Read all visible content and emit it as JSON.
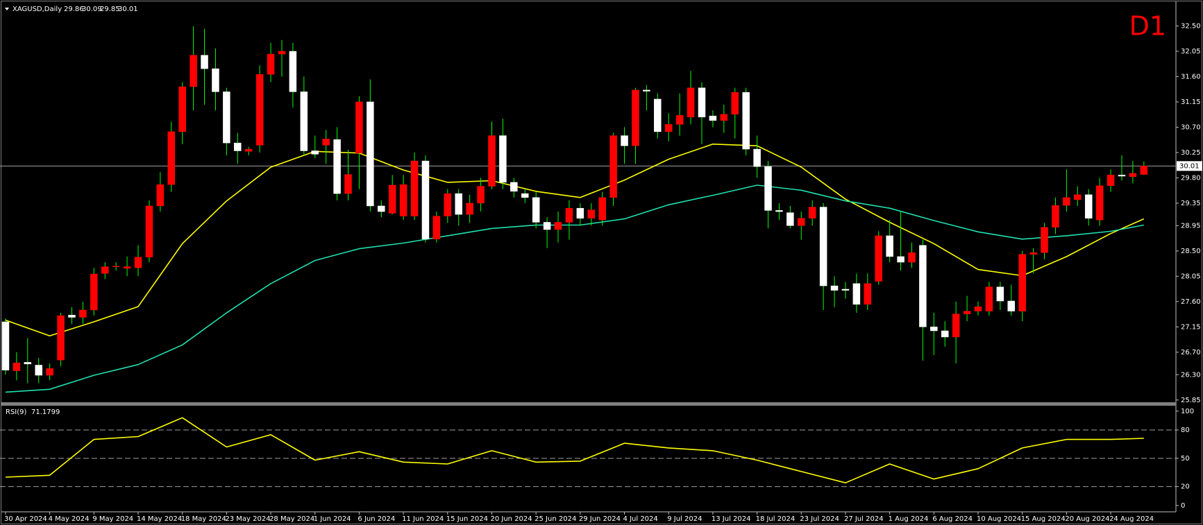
{
  "chart_data": {
    "type": "candlestick",
    "symbol": "XAGUSD,Daily",
    "timeframe": "D1",
    "categories": [
      "30 Apr 2024",
      null,
      null,
      null,
      "4 May 2024",
      null,
      null,
      null,
      "9 May 2024",
      null,
      null,
      null,
      "14 May 2024",
      null,
      null,
      null,
      "18 May 2024",
      null,
      null,
      null,
      "23 May 2024",
      null,
      null,
      null,
      "28 May 2024",
      null,
      null,
      null,
      "1 Jun 2024",
      null,
      null,
      null,
      "6 Jun 2024",
      null,
      null,
      null,
      "11 Jun 2024",
      null,
      null,
      null,
      "15 Jun 2024",
      null,
      null,
      null,
      "20 Jun 2024",
      null,
      null,
      null,
      "25 Jun 2024",
      null,
      null,
      null,
      "29 Jun 2024",
      null,
      null,
      null,
      "4 Jul 2024",
      null,
      null,
      null,
      "9 Jul 2024",
      null,
      null,
      null,
      "13 Jul 2024",
      null,
      null,
      null,
      "18 Jul 2024",
      null,
      null,
      null,
      "23 Jul 2024",
      null,
      null,
      null,
      "27 Jul 2024",
      null,
      null,
      null,
      "1 Aug 2024",
      null,
      null,
      null,
      "6 Aug 2024",
      null,
      null,
      null,
      "10 Aug 2024",
      null,
      null,
      null,
      "15 Aug 2024",
      null,
      null,
      null,
      "20 Aug 2024",
      null,
      null,
      null,
      "24 Aug 2024",
      null,
      null,
      null
    ],
    "open": [
      27.24,
      26.37,
      26.52,
      26.47,
      26.29,
      26.56,
      27.36,
      27.32,
      27.45,
      28.1,
      28.22,
      28.19,
      28.2,
      28.39,
      29.3,
      29.68,
      30.62,
      31.42,
      31.98,
      31.74,
      31.33,
      30.42,
      30.27,
      30.38,
      31.64,
      32.0,
      32.05,
      31.33,
      30.28,
      30.38,
      30.48,
      29.52,
      30.24,
      31.15,
      29.3,
      29.17,
      29.12,
      29.12,
      30.1,
      28.71,
      29.12,
      29.52,
      29.15,
      29.35,
      29.65,
      30.55,
      29.72,
      29.52,
      29.45,
      29.01,
      28.88,
      29.01,
      29.26,
      29.08,
      29.05,
      29.45,
      30.55,
      30.37,
      31.36,
      31.2,
      30.62,
      30.75,
      30.88,
      31.4,
      30.9,
      30.82,
      30.93,
      31.32,
      30.31,
      30.0,
      29.22,
      29.18,
      28.95,
      29.08,
      29.28,
      27.88,
      27.82,
      27.92,
      27.55,
      27.96,
      28.77,
      28.4,
      28.3,
      28.6,
      27.15,
      27.08,
      26.97,
      27.38,
      27.43,
      27.43,
      27.86,
      27.61,
      27.43,
      28.44,
      28.47,
      28.92,
      29.31,
      29.41,
      29.5,
      29.05,
      29.66,
      29.85,
      29.82,
      29.86
    ],
    "high": [
      27.3,
      26.7,
      26.95,
      26.6,
      26.5,
      27.4,
      27.5,
      27.6,
      28.2,
      28.3,
      28.3,
      28.4,
      28.6,
      29.4,
      29.9,
      30.8,
      31.5,
      32.5,
      32.45,
      32.1,
      31.4,
      30.6,
      30.35,
      31.8,
      32.2,
      32.25,
      32.2,
      31.6,
      30.55,
      30.65,
      30.7,
      30.3,
      31.25,
      31.55,
      29.4,
      29.85,
      29.85,
      30.25,
      30.2,
      29.2,
      29.6,
      29.6,
      29.5,
      29.8,
      30.8,
      30.85,
      29.8,
      29.6,
      29.55,
      29.1,
      29.2,
      29.4,
      29.35,
      29.35,
      29.55,
      30.6,
      30.7,
      31.4,
      31.45,
      31.3,
      30.95,
      31.3,
      31.7,
      31.5,
      31.0,
      31.1,
      31.4,
      31.4,
      30.55,
      30.1,
      29.35,
      29.3,
      29.2,
      29.4,
      29.35,
      28.05,
      27.95,
      28.1,
      28.1,
      28.85,
      29.05,
      29.2,
      28.65,
      28.7,
      27.4,
      27.25,
      27.6,
      27.7,
      27.6,
      27.95,
      27.95,
      27.9,
      28.5,
      28.55,
      29.0,
      29.45,
      29.95,
      29.65,
      29.6,
      29.8,
      29.95,
      30.2,
      30.1,
      30.09
    ],
    "low": [
      26.3,
      26.2,
      26.15,
      26.15,
      26.2,
      26.45,
      27.2,
      27.2,
      27.35,
      28.0,
      28.15,
      28.05,
      28.05,
      28.3,
      29.2,
      29.55,
      30.4,
      31.0,
      31.1,
      31.0,
      30.2,
      30.05,
      30.2,
      30.25,
      31.5,
      31.6,
      31.05,
      30.2,
      30.15,
      30.05,
      29.4,
      29.4,
      29.6,
      29.2,
      29.1,
      29.15,
      29.05,
      29.05,
      28.65,
      28.65,
      29.0,
      28.95,
      29.0,
      29.2,
      29.6,
      29.6,
      29.45,
      29.35,
      28.9,
      28.55,
      28.65,
      28.7,
      28.95,
      28.95,
      28.95,
      29.3,
      30.05,
      30.05,
      31.0,
      30.5,
      30.45,
      30.55,
      30.75,
      30.4,
      30.7,
      30.6,
      30.5,
      30.2,
      29.8,
      28.9,
      29.05,
      28.9,
      28.7,
      28.95,
      27.45,
      27.5,
      27.65,
      27.4,
      27.45,
      27.9,
      28.3,
      28.15,
      28.2,
      26.55,
      26.65,
      26.8,
      26.5,
      27.25,
      27.35,
      27.35,
      27.45,
      27.35,
      27.25,
      28.1,
      28.35,
      28.8,
      29.2,
      29.3,
      28.95,
      28.95,
      29.55,
      29.75,
      29.7,
      29.85
    ],
    "close": [
      26.38,
      26.51,
      26.49,
      26.29,
      26.41,
      27.35,
      27.32,
      27.45,
      28.09,
      28.22,
      28.23,
      28.22,
      28.39,
      29.3,
      29.68,
      30.62,
      31.42,
      31.98,
      31.74,
      31.33,
      30.42,
      30.28,
      30.31,
      31.64,
      32.0,
      32.05,
      31.33,
      30.28,
      30.22,
      30.49,
      29.52,
      29.86,
      31.15,
      29.3,
      29.2,
      29.67,
      29.68,
      30.1,
      28.71,
      29.12,
      29.52,
      29.15,
      29.35,
      29.65,
      30.55,
      29.72,
      29.56,
      29.45,
      29.01,
      28.88,
      29.01,
      29.26,
      29.08,
      29.23,
      29.45,
      30.55,
      30.37,
      31.36,
      31.34,
      30.62,
      30.75,
      30.91,
      31.4,
      30.88,
      30.82,
      30.93,
      31.32,
      30.31,
      30.0,
      29.22,
      29.2,
      28.95,
      29.08,
      29.28,
      27.88,
      27.8,
      27.8,
      27.55,
      27.92,
      28.77,
      28.4,
      28.3,
      28.47,
      27.15,
      27.08,
      26.97,
      27.38,
      27.43,
      27.51,
      27.86,
      27.61,
      27.43,
      28.44,
      28.47,
      28.92,
      29.31,
      29.45,
      29.5,
      29.08,
      29.66,
      29.85,
      29.83,
      29.88,
      30.01
    ],
    "up_color": "#ff0000",
    "down_color": "#ffffff",
    "wick_color": "#00ff00",
    "xlim": [
      -0.5,
      105.9
    ],
    "ylim": [
      25.81,
      32.9
    ],
    "yticks": [
      {
        "value": 32.5,
        "label": "32.50"
      },
      32.05,
      {
        "value": 31.6,
        "label": "31.60"
      },
      31.15,
      {
        "value": 30.7,
        "label": "30.70"
      },
      30.25,
      {
        "value": 29.8,
        "label": "29.80"
      },
      29.35,
      28.95,
      {
        "value": 28.5,
        "label": "28.50"
      },
      28.05,
      {
        "value": 27.6,
        "label": "27.60"
      },
      27.15,
      {
        "value": 26.7,
        "label": "26.70"
      },
      {
        "value": 26.3,
        "label": "26.30"
      },
      25.85
    ],
    "price_line": 30.01,
    "overlays": [
      {
        "color": "#ffff00",
        "x": [
          0,
          4,
          8,
          12,
          16,
          20,
          24,
          28,
          32,
          36,
          40,
          44,
          48,
          52,
          56,
          60,
          64,
          68,
          72,
          76,
          80,
          84,
          88,
          92,
          96,
          100,
          103
        ],
        "values": [
          27.27,
          26.99,
          27.24,
          27.51,
          28.63,
          29.39,
          29.99,
          30.27,
          30.24,
          29.94,
          29.72,
          29.75,
          29.56,
          29.45,
          29.76,
          30.13,
          30.4,
          30.37,
          29.99,
          29.42,
          29.01,
          28.63,
          28.17,
          28.06,
          28.4,
          28.81,
          29.07
        ]
      },
      {
        "color": "#20e0b0",
        "x": [
          0,
          4,
          8,
          12,
          16,
          20,
          24,
          28,
          32,
          36,
          40,
          44,
          48,
          52,
          56,
          60,
          64,
          68,
          72,
          76,
          80,
          84,
          88,
          92,
          96,
          100,
          103
        ],
        "values": [
          25.99,
          26.04,
          26.29,
          26.48,
          26.83,
          27.4,
          27.92,
          28.33,
          28.54,
          28.64,
          28.77,
          28.9,
          28.96,
          28.96,
          29.07,
          29.32,
          29.49,
          29.67,
          29.58,
          29.39,
          29.26,
          29.04,
          28.84,
          28.71,
          28.77,
          28.85,
          28.96
        ]
      }
    ],
    "indicator": {
      "type": "line",
      "title": "RSI(9)",
      "color": "#ffff00",
      "x": [
        0,
        4,
        8,
        12,
        16,
        20,
        24,
        28,
        32,
        36,
        40,
        44,
        48,
        52,
        56,
        60,
        64,
        68,
        72,
        76,
        80,
        84,
        88,
        92,
        96,
        100,
        103
      ],
      "values": [
        30,
        32,
        70,
        73,
        93,
        62,
        75,
        48,
        57,
        46,
        44,
        58,
        46,
        47,
        66,
        61,
        58,
        48,
        36,
        24,
        44,
        28,
        39,
        61,
        70,
        70,
        71.1799
      ],
      "ylim": [
        -6,
        105
      ],
      "yticks": [
        0,
        20,
        50,
        80,
        100
      ],
      "levels": [
        20,
        50,
        80
      ]
    }
  }
}
